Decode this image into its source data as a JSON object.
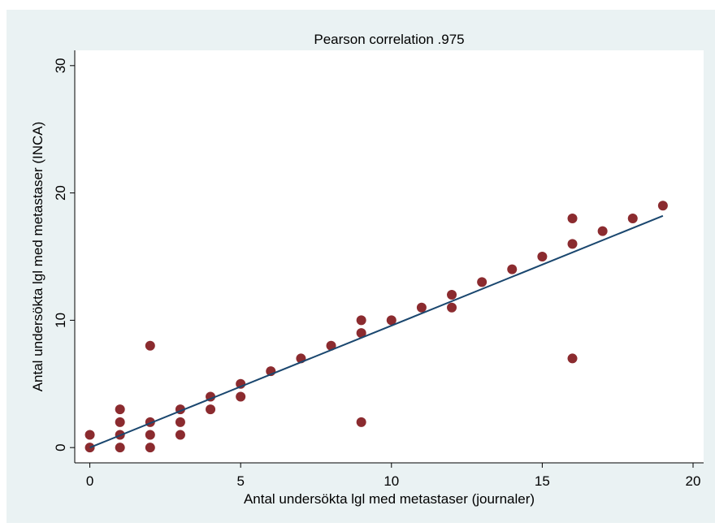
{
  "chart_data": {
    "type": "scatter",
    "title": "Pearson correlation  .975",
    "x_label": "Antal undersökta lgl med metastaser (journaler)",
    "y_label": "Antal undersökta lgl med metastaser (INCA)",
    "x": [
      0,
      0,
      1,
      1,
      1,
      1,
      2,
      2,
      2,
      2,
      3,
      3,
      3,
      4,
      4,
      5,
      5,
      6,
      7,
      8,
      9,
      9,
      9,
      10,
      11,
      12,
      12,
      13,
      14,
      15,
      16,
      16,
      16,
      17,
      18,
      19
    ],
    "y": [
      0,
      1,
      0,
      1,
      2,
      3,
      0,
      1,
      2,
      8,
      1,
      2,
      3,
      3,
      4,
      4,
      5,
      6,
      7,
      8,
      2,
      9,
      10,
      10,
      11,
      11,
      12,
      13,
      14,
      15,
      7,
      16,
      18,
      17,
      18,
      19
    ],
    "color": "#8b2b2f",
    "fit": {
      "x": [
        0,
        19
      ],
      "y": [
        0,
        18.2
      ],
      "color": "#1a476f"
    },
    "xlim": [
      -0.5,
      20.35
    ],
    "ylim": [
      -1.2,
      31.2
    ],
    "xticks": [
      0,
      5,
      10,
      15,
      20
    ],
    "yticks": [
      0,
      10,
      20,
      30
    ]
  }
}
